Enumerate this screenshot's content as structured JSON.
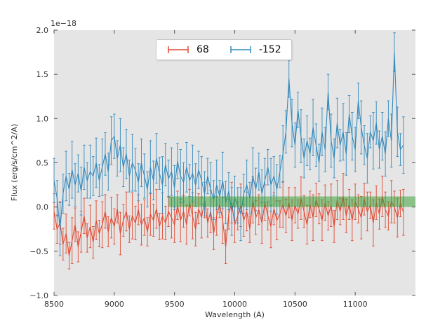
{
  "chart_data": {
    "type": "line",
    "subtype": "errorbar-spectrum",
    "title": "",
    "xlabel": "Wavelength (A)",
    "ylabel": "Flux (erg/s/cm^2/A)",
    "offset_label": "1e−18",
    "xlim": [
      8500,
      11500
    ],
    "ylim": [
      -1.0,
      2.0
    ],
    "xticks": [
      8500,
      9000,
      9500,
      10000,
      10500,
      11000
    ],
    "xtick_labels": [
      "8500",
      "9000",
      "9500",
      "10000",
      "10500",
      "11000"
    ],
    "yticks": [
      -1.0,
      -0.5,
      0.0,
      0.5,
      1.0,
      1.5,
      2.0
    ],
    "ytick_labels": [
      "−1.0",
      "−0.5",
      "0.0",
      "0.5",
      "1.0",
      "1.5",
      "2.0"
    ],
    "grid": false,
    "legend_position": "upper-center-left",
    "legend": [
      {
        "label": "68",
        "color": "#e24a33"
      },
      {
        "label": "-152",
        "color": "#348abd"
      }
    ],
    "plot_bg": "#e5e5e5",
    "tick_color": "#555555",
    "label_color": "#333333",
    "band": {
      "x0": 9450,
      "x1": 11500,
      "y0": 0.0,
      "y1": 0.12,
      "color": "#2e9e2e",
      "opacity": 0.5
    },
    "x_start": 8500,
    "x_step": 25,
    "x_end": 11400,
    "series": [
      {
        "name": "68",
        "color": "#e24a33",
        "values": [
          -0.05,
          -0.25,
          -0.18,
          -0.42,
          -0.3,
          -0.55,
          -0.38,
          -0.2,
          -0.45,
          -0.28,
          -0.1,
          -0.35,
          -0.22,
          -0.4,
          -0.15,
          -0.3,
          -0.2,
          -0.05,
          -0.28,
          -0.12,
          -0.22,
          -0.02,
          -0.3,
          -0.15,
          -0.05,
          -0.25,
          -0.1,
          -0.18,
          -0.03,
          -0.2,
          -0.12,
          -0.28,
          -0.08,
          -0.15,
          -0.02,
          -0.22,
          -0.1,
          -0.18,
          -0.05,
          -0.12,
          -0.2,
          0.02,
          -0.15,
          -0.05,
          -0.2,
          0.05,
          -0.1,
          -0.25,
          -0.02,
          -0.12,
          0.08,
          -0.18,
          -0.05,
          -0.3,
          -0.1,
          0.03,
          -0.15,
          -0.45,
          -0.08,
          0.05,
          -0.2,
          -0.1,
          0.02,
          -0.15,
          -0.05,
          -0.25,
          0.08,
          -0.12,
          -0.03,
          -0.18,
          0.05,
          -0.1,
          -0.22,
          -0.02,
          -0.15,
          -0.08,
          0.03,
          -0.1,
          0.05,
          -0.15,
          0.02,
          -0.08,
          0.1,
          -0.05,
          -0.2,
          0.03,
          -0.12,
          0.08,
          -0.02,
          -0.15,
          0.05,
          -0.1,
          0.02,
          -0.22,
          0.08,
          -0.05,
          0.12,
          -0.1,
          0.03,
          -0.15,
          0.06,
          -0.02,
          -0.12,
          0.09,
          -0.05,
          0.02,
          -0.18,
          0.05,
          -0.08,
          0.12,
          -0.03,
          -0.1,
          0.06,
          0.0,
          -0.12,
          0.04,
          -0.06
        ],
        "errors": [
          0.2,
          0.16,
          0.24,
          0.18,
          0.22,
          0.15,
          0.26,
          0.19,
          0.17,
          0.23,
          0.2,
          0.16,
          0.24,
          0.18,
          0.22,
          0.15,
          0.26,
          0.19,
          0.17,
          0.23,
          0.2,
          0.16,
          0.24,
          0.18,
          0.22,
          0.15,
          0.26,
          0.19,
          0.17,
          0.23,
          0.2,
          0.16,
          0.24,
          0.18,
          0.22,
          0.15,
          0.26,
          0.19,
          0.17,
          0.23,
          0.2,
          0.16,
          0.24,
          0.18,
          0.22,
          0.15,
          0.26,
          0.19,
          0.17,
          0.23,
          0.2,
          0.16,
          0.24,
          0.18,
          0.22,
          0.15,
          0.26,
          0.19,
          0.17,
          0.23,
          0.2,
          0.16,
          0.24,
          0.18,
          0.22,
          0.15,
          0.26,
          0.19,
          0.17,
          0.23,
          0.2,
          0.16,
          0.24,
          0.18,
          0.22,
          0.15,
          0.26,
          0.19,
          0.17,
          0.23,
          0.2,
          0.16,
          0.24,
          0.18,
          0.22,
          0.15,
          0.26,
          0.19,
          0.17,
          0.23,
          0.2,
          0.16,
          0.24,
          0.18,
          0.22,
          0.15,
          0.26,
          0.19,
          0.17,
          0.23,
          0.2,
          0.16,
          0.24,
          0.18,
          0.22,
          0.15,
          0.26,
          0.19,
          0.17,
          0.23,
          0.2,
          0.16,
          0.24,
          0.18,
          0.22,
          0.15,
          0.26
        ]
      },
      {
        "name": "-152",
        "color": "#348abd",
        "values": [
          0.3,
          0.1,
          -0.25,
          0.15,
          0.35,
          0.2,
          0.42,
          0.25,
          0.38,
          0.18,
          0.45,
          0.3,
          0.4,
          0.35,
          0.5,
          0.3,
          0.45,
          0.6,
          0.4,
          0.75,
          0.8,
          0.55,
          0.7,
          0.45,
          0.6,
          0.35,
          0.5,
          0.42,
          0.28,
          0.5,
          0.35,
          0.2,
          0.45,
          0.3,
          0.55,
          0.38,
          0.25,
          0.48,
          0.32,
          0.4,
          0.22,
          0.52,
          0.35,
          0.28,
          0.45,
          0.3,
          0.38,
          0.25,
          0.42,
          0.3,
          0.15,
          0.35,
          0.2,
          0.08,
          0.25,
          0.12,
          0.3,
          0.05,
          0.18,
          -0.05,
          0.1,
          0.02,
          -0.08,
          0.15,
          0.25,
          0.1,
          0.35,
          0.2,
          0.4,
          0.15,
          0.3,
          0.45,
          0.25,
          0.35,
          0.2,
          0.4,
          0.6,
          0.85,
          1.45,
          0.95,
          0.7,
          1.1,
          0.8,
          0.55,
          0.75,
          0.6,
          0.9,
          0.7,
          0.5,
          0.85,
          0.65,
          1.3,
          0.75,
          0.55,
          0.95,
          0.7,
          0.85,
          0.6,
          1.05,
          0.8,
          0.65,
          1.2,
          0.9,
          0.7,
          0.55,
          0.85,
          0.75,
          0.95,
          0.65,
          0.8,
          0.6,
          1.0,
          0.75,
          1.75,
          0.85,
          0.65,
          0.7
        ],
        "errors": [
          0.25,
          0.2,
          0.3,
          0.22,
          0.28,
          0.18,
          0.32,
          0.24,
          0.21,
          0.27,
          0.25,
          0.2,
          0.3,
          0.22,
          0.28,
          0.18,
          0.32,
          0.24,
          0.21,
          0.27,
          0.25,
          0.2,
          0.3,
          0.22,
          0.28,
          0.18,
          0.32,
          0.24,
          0.21,
          0.27,
          0.25,
          0.2,
          0.3,
          0.22,
          0.28,
          0.18,
          0.32,
          0.24,
          0.21,
          0.27,
          0.25,
          0.2,
          0.3,
          0.22,
          0.28,
          0.18,
          0.32,
          0.24,
          0.21,
          0.27,
          0.25,
          0.2,
          0.3,
          0.22,
          0.28,
          0.18,
          0.32,
          0.24,
          0.21,
          0.27,
          0.25,
          0.2,
          0.3,
          0.22,
          0.28,
          0.18,
          0.32,
          0.24,
          0.21,
          0.27,
          0.25,
          0.2,
          0.3,
          0.22,
          0.28,
          0.18,
          0.32,
          0.24,
          0.21,
          0.27,
          0.25,
          0.2,
          0.3,
          0.22,
          0.28,
          0.18,
          0.32,
          0.24,
          0.21,
          0.27,
          0.25,
          0.2,
          0.3,
          0.22,
          0.28,
          0.18,
          0.32,
          0.24,
          0.21,
          0.27,
          0.25,
          0.2,
          0.3,
          0.22,
          0.28,
          0.18,
          0.32,
          0.24,
          0.21,
          0.27,
          0.25,
          0.2,
          0.3,
          0.22,
          0.28,
          0.18,
          0.32
        ]
      }
    ]
  }
}
